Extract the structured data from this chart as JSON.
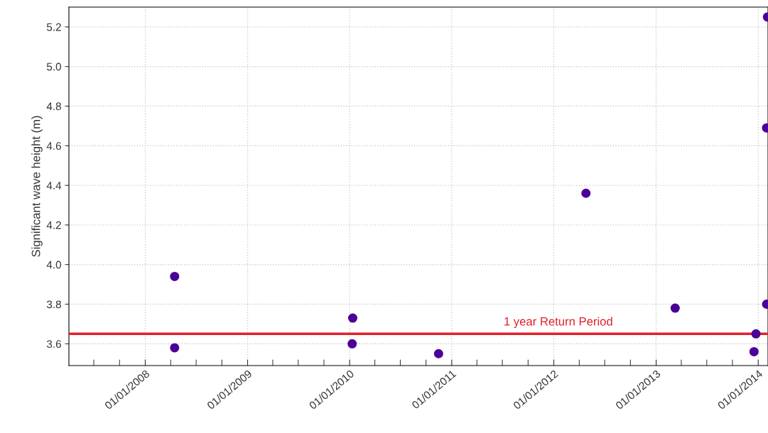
{
  "chart_data": {
    "type": "scatter",
    "ylabel": "Significant wave height (m)",
    "x": [
      "2008-04-15",
      "2008-04-15",
      "2010-01-12",
      "2010-01-10",
      "2010-11-15",
      "2012-04-25",
      "2013-03-10",
      "2013-12-24",
      "2013-12-17",
      "2014-01-31",
      "2014-01-31",
      "2014-02-03"
    ],
    "series": [
      {
        "color": "#4b0096",
        "values": [
          3.94,
          3.58,
          3.73,
          3.6,
          3.55,
          4.36,
          3.78,
          3.65,
          3.56,
          3.8,
          4.69,
          5.25
        ]
      }
    ],
    "marker": "circle",
    "grid": true,
    "xlim": [
      "2007-04-03",
      "2014-02-05"
    ],
    "xticks": [
      {
        "value": "2008-01-01",
        "label": "01/01/2008"
      },
      {
        "value": "2009-01-01",
        "label": "01/01/2009"
      },
      {
        "value": "2010-01-01",
        "label": "01/01/2010"
      },
      {
        "value": "2011-01-01",
        "label": "01/01/2011"
      },
      {
        "value": "2012-01-01",
        "label": "01/01/2012"
      },
      {
        "value": "2013-01-01",
        "label": "01/01/2013"
      },
      {
        "value": "2014-01-01",
        "label": "01/01/2014"
      }
    ],
    "ylim": [
      3.49,
      5.3
    ],
    "yticks": [
      {
        "value": 3.6,
        "label": "3.6"
      },
      {
        "value": 3.8,
        "label": "3.8"
      },
      {
        "value": 4.0,
        "label": "4.0"
      },
      {
        "value": 4.2,
        "label": "4.2"
      },
      {
        "value": 4.4,
        "label": "4.4"
      },
      {
        "value": 4.6,
        "label": "4.6"
      },
      {
        "value": 4.8,
        "label": "4.8"
      },
      {
        "value": 5.0,
        "label": "5.0"
      },
      {
        "value": 5.2,
        "label": "5.2"
      }
    ],
    "ref_lines": [
      {
        "axis": "y",
        "value": 3.65,
        "label": "1 year Return Period",
        "color": "#e0202a"
      }
    ]
  }
}
